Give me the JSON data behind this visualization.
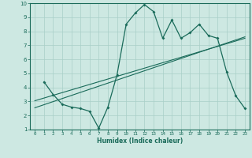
{
  "xlabel": "Humidex (Indice chaleur)",
  "background_color": "#cde8e2",
  "grid_color": "#a8cfc8",
  "line_color": "#1a6b5a",
  "xlim": [
    -0.5,
    23.5
  ],
  "ylim": [
    1,
    10
  ],
  "xticks": [
    0,
    1,
    2,
    3,
    4,
    5,
    6,
    7,
    8,
    9,
    10,
    11,
    12,
    13,
    14,
    15,
    16,
    17,
    18,
    19,
    20,
    21,
    22,
    23
  ],
  "yticks": [
    1,
    2,
    3,
    4,
    5,
    6,
    7,
    8,
    9,
    10
  ],
  "curve1_x": [
    1,
    2,
    3,
    4,
    5,
    6,
    7,
    8,
    9,
    10,
    11,
    12,
    13,
    14,
    15,
    16,
    17,
    18,
    19,
    20,
    21,
    22,
    23
  ],
  "curve1_y": [
    4.4,
    3.5,
    2.8,
    2.6,
    2.5,
    2.3,
    1.1,
    2.6,
    4.9,
    8.5,
    9.3,
    9.9,
    9.4,
    7.5,
    8.8,
    7.5,
    7.9,
    8.5,
    7.7,
    7.5,
    5.1,
    3.4,
    2.5
  ],
  "line1_x": [
    0,
    23
  ],
  "line1_y": [
    2.55,
    7.6
  ],
  "line2_x": [
    0,
    23
  ],
  "line2_y": [
    3.05,
    7.5
  ]
}
